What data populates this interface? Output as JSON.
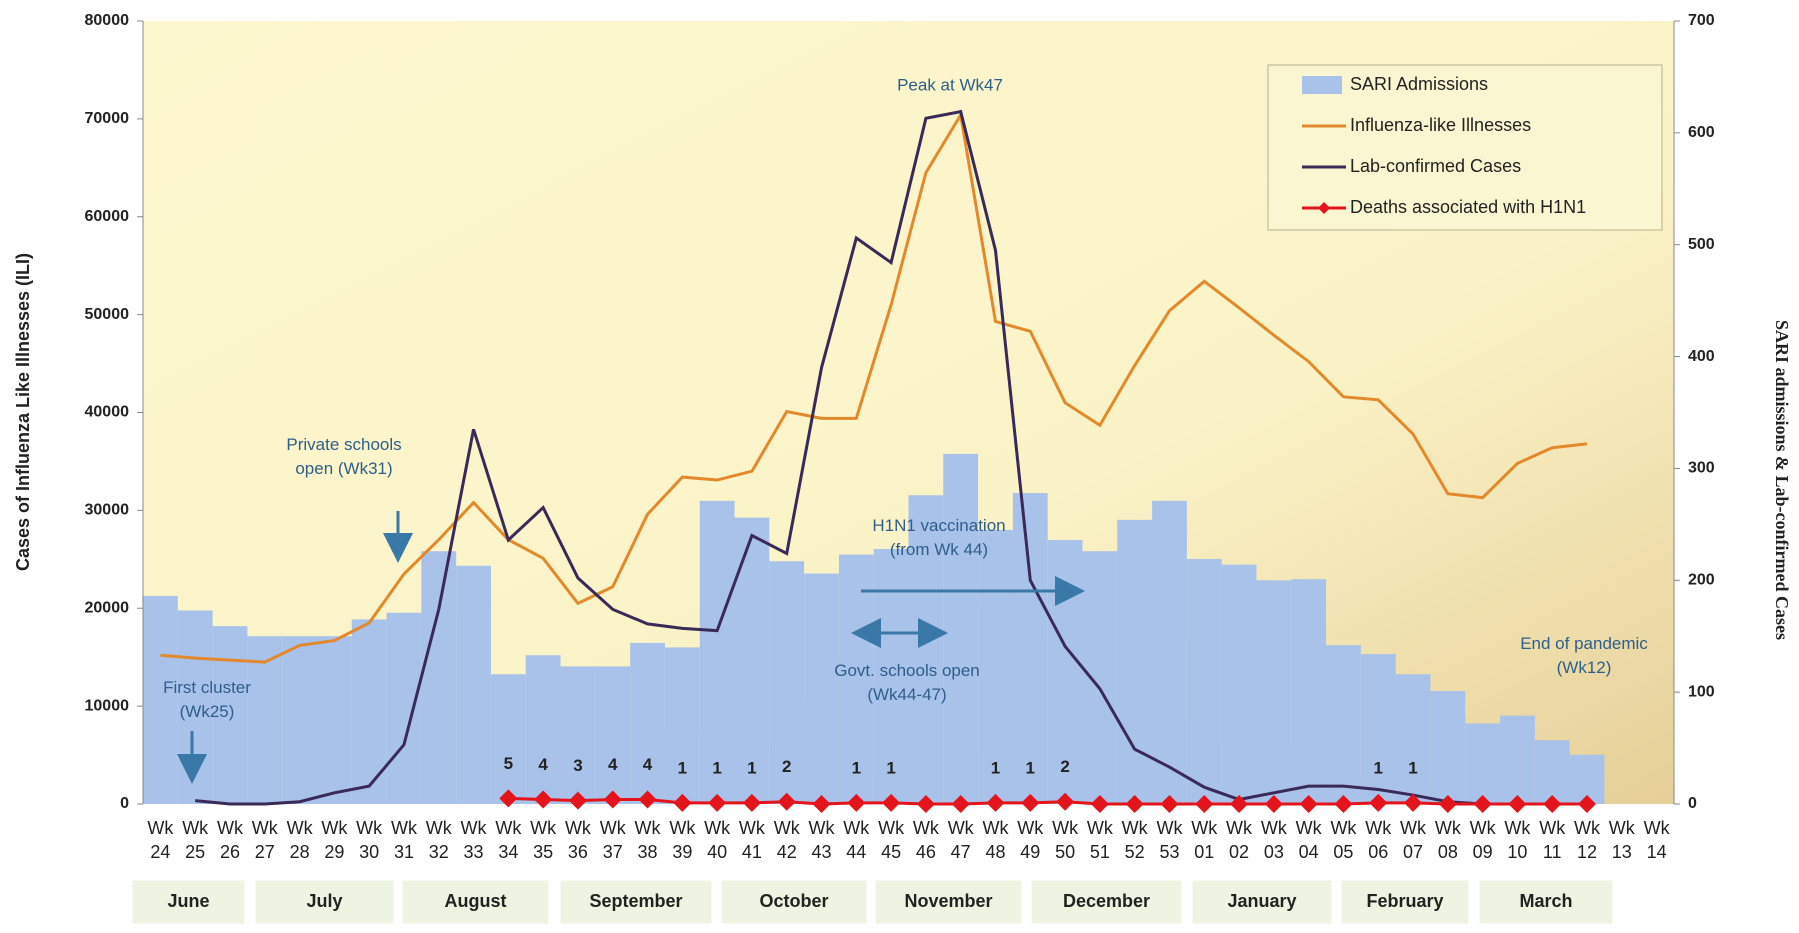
{
  "chart_data": {
    "type": "bar",
    "y_label": "Cases of Influenza  Like Illnesses (ILI)",
    "y2_label": "SARI admissions & Lab-confirmed Cases",
    "categories": [
      "Wk\n24",
      "Wk\n25",
      "Wk\n26",
      "Wk\n27",
      "Wk\n28",
      "Wk\n29",
      "Wk\n30",
      "Wk\n31",
      "Wk\n32",
      "Wk\n33",
      "Wk\n34",
      "Wk\n35",
      "Wk\n36",
      "Wk\n37",
      "Wk\n38",
      "Wk\n39",
      "Wk\n40",
      "Wk\n41",
      "Wk\n42",
      "Wk\n43",
      "Wk\n44",
      "Wk\n45",
      "Wk\n46",
      "Wk\n47",
      "Wk\n48",
      "Wk\n49",
      "Wk\n50",
      "Wk\n51",
      "Wk\n52",
      "Wk\n53",
      "Wk\n01",
      "Wk\n02",
      "Wk\n03",
      "Wk\n04",
      "Wk\n05",
      "Wk\n06",
      "Wk\n07",
      "Wk\n08",
      "Wk\n09",
      "Wk\n10",
      "Wk\n11",
      "Wk\n12",
      "Wk\n13",
      "Wk\n14"
    ],
    "months": [
      "June",
      "July",
      "August",
      "September",
      "October",
      "November",
      "December",
      "January",
      "February",
      "March"
    ],
    "series": [
      {
        "name": "SARI Admissions",
        "type": "bar",
        "axis": "y2",
        "color": "#a8c2ea",
        "values": [
          186,
          173,
          159,
          150,
          150,
          150,
          165,
          171,
          226,
          213,
          116,
          133,
          123,
          123,
          144,
          140,
          271,
          256,
          217,
          206,
          223,
          228,
          276,
          313,
          245,
          278,
          236,
          226,
          254,
          271,
          219,
          214,
          200,
          201,
          142,
          134,
          116,
          101,
          72,
          79,
          57,
          44,
          null,
          null
        ]
      },
      {
        "name": "Influenza-like Illnesses",
        "type": "line",
        "color": "#e3892c",
        "values": [
          15200,
          14900,
          14700,
          14500,
          16200,
          16700,
          18500,
          23500,
          27000,
          30800,
          27000,
          25100,
          20500,
          22200,
          29600,
          33400,
          33100,
          34000,
          40100,
          39400,
          39400,
          51000,
          64500,
          70400,
          49300,
          48300,
          41000,
          38700,
          44800,
          50400,
          53400,
          50700,
          47900,
          45200,
          41600,
          41300,
          37800,
          31700,
          31300,
          34800,
          36400,
          36800,
          null,
          null
        ]
      },
      {
        "name": "Lab-confirmed Cases",
        "type": "line",
        "axis": "y2",
        "color": "#3a2a58",
        "values": [
          null,
          3,
          0,
          0,
          2,
          10,
          16,
          53,
          174,
          335,
          236,
          265,
          202,
          174,
          161,
          157,
          155,
          240,
          224,
          390,
          506,
          484,
          613,
          619,
          495,
          200,
          141,
          103,
          49,
          33,
          15,
          4,
          10,
          16,
          16,
          13,
          8,
          2,
          0,
          0,
          0,
          0,
          null,
          null
        ]
      },
      {
        "name": "Deaths associated with H1N1",
        "type": "marker-line",
        "axis": "y2",
        "color": "#e3141c",
        "values": [
          null,
          null,
          null,
          null,
          null,
          null,
          null,
          null,
          null,
          null,
          5,
          4,
          3,
          4,
          4,
          1,
          1,
          1,
          2,
          0,
          1,
          1,
          0,
          0,
          1,
          1,
          2,
          0,
          0,
          0,
          0,
          0,
          0,
          0,
          0,
          1,
          1,
          0,
          0,
          0,
          0,
          0,
          null,
          null
        ],
        "value_labels": [
          null,
          null,
          null,
          null,
          null,
          null,
          null,
          null,
          null,
          null,
          "5",
          "4",
          "3",
          "4",
          "4",
          "1",
          "1",
          "1",
          "2",
          null,
          "1",
          "1",
          null,
          null,
          "1",
          "1",
          "2",
          null,
          null,
          null,
          null,
          null,
          null,
          null,
          null,
          "1",
          "1",
          null,
          null,
          null,
          null,
          null,
          null,
          null
        ]
      }
    ],
    "ylim": [
      0,
      80000
    ],
    "yticks": [
      0,
      10000,
      20000,
      30000,
      40000,
      50000,
      60000,
      70000,
      80000
    ],
    "y2lim": [
      0,
      700
    ],
    "y2ticks": [
      0,
      100,
      200,
      300,
      400,
      500,
      600,
      700
    ],
    "legend": "top-right",
    "annotations": [
      "Peak at Wk47",
      "Private schools\nopen (Wk31)",
      "First cluster\n(Wk25)",
      "H1N1 vaccination\n(from Wk 44)",
      "Govt. schools open\n(Wk44-47)",
      "End of pandemic\n(Wk12)"
    ]
  }
}
